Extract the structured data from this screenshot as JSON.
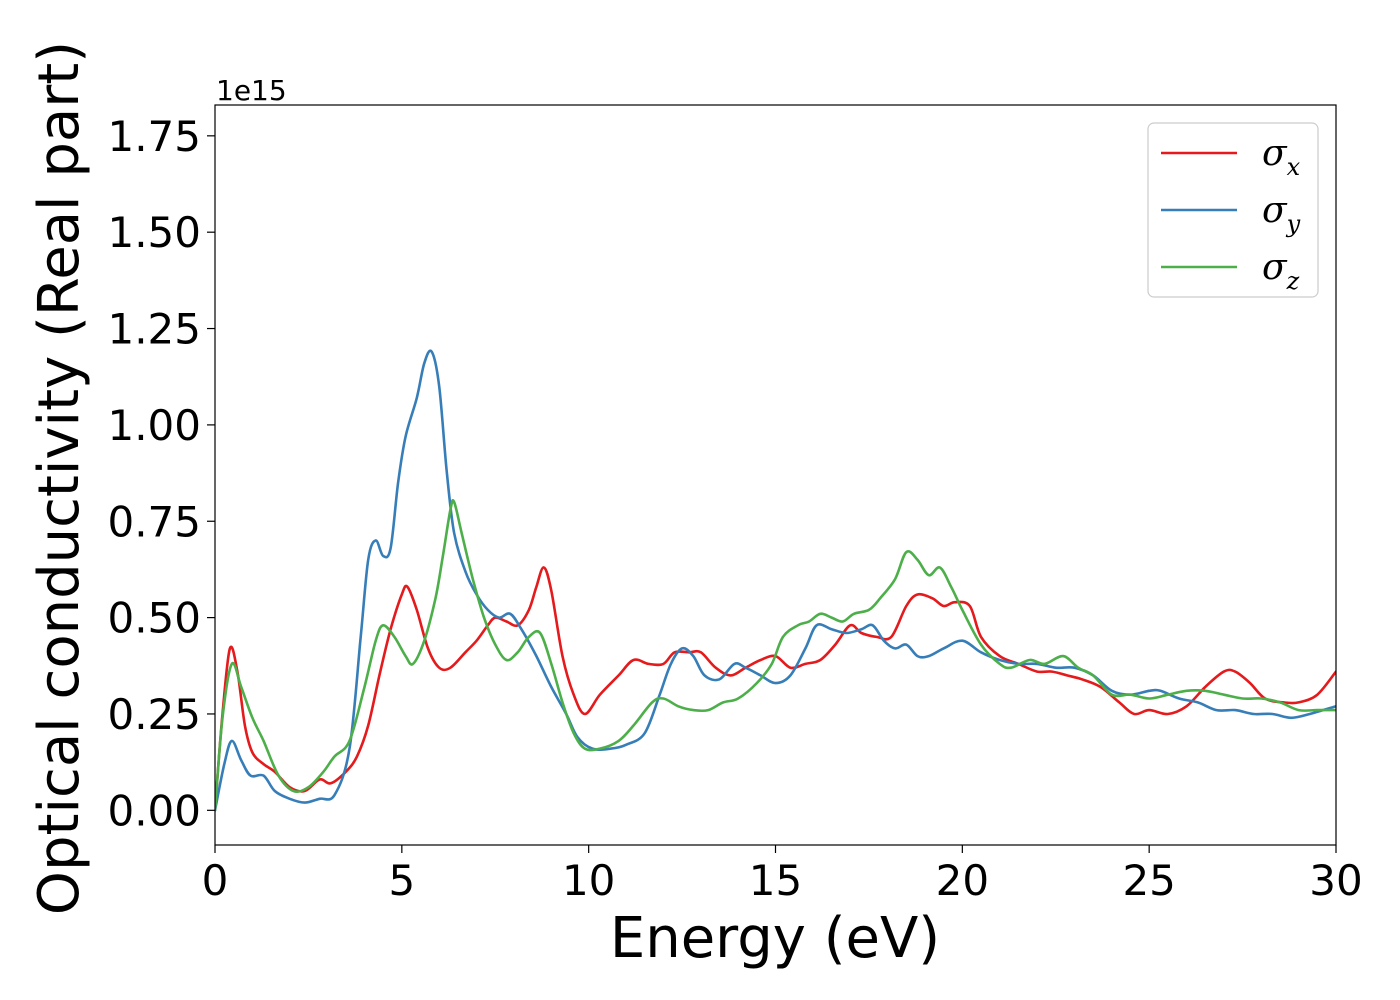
{
  "chart_data": {
    "type": "line",
    "xlabel": "Energy (eV)",
    "ylabel": "Optical conductivity (Real part)",
    "y_offset_label": "1e15",
    "xlim": [
      0,
      30
    ],
    "ylim": [
      -0.09,
      1.83
    ],
    "x_ticks": [
      0,
      5,
      10,
      15,
      20,
      25,
      30
    ],
    "x_tick_labels": [
      "0",
      "5",
      "10",
      "15",
      "20",
      "25",
      "30"
    ],
    "y_ticks": [
      0,
      0.25,
      0.5,
      0.75,
      1.0,
      1.25,
      1.5,
      1.75
    ],
    "y_tick_labels": [
      "0.00",
      "0.25",
      "0.50",
      "0.75",
      "1.00",
      "1.25",
      "1.50",
      "1.75"
    ],
    "grid": false,
    "legend_position": "top-right",
    "series": [
      {
        "name": "σ",
        "subscript": "x",
        "color": "#e41a1c",
        "points": [
          [
            0,
            0
          ],
          [
            0.2,
            0.25
          ],
          [
            0.4,
            0.42
          ],
          [
            0.6,
            0.36
          ],
          [
            0.8,
            0.22
          ],
          [
            1.0,
            0.15
          ],
          [
            1.3,
            0.12
          ],
          [
            1.6,
            0.1
          ],
          [
            2.0,
            0.06
          ],
          [
            2.4,
            0.05
          ],
          [
            2.8,
            0.08
          ],
          [
            3.1,
            0.07
          ],
          [
            3.5,
            0.1
          ],
          [
            3.8,
            0.14
          ],
          [
            4.1,
            0.22
          ],
          [
            4.4,
            0.35
          ],
          [
            4.7,
            0.47
          ],
          [
            5.0,
            0.56
          ],
          [
            5.15,
            0.58
          ],
          [
            5.4,
            0.52
          ],
          [
            5.7,
            0.42
          ],
          [
            6.0,
            0.37
          ],
          [
            6.3,
            0.37
          ],
          [
            6.7,
            0.41
          ],
          [
            7.0,
            0.44
          ],
          [
            7.3,
            0.48
          ],
          [
            7.5,
            0.5
          ],
          [
            7.8,
            0.49
          ],
          [
            8.1,
            0.48
          ],
          [
            8.4,
            0.52
          ],
          [
            8.6,
            0.58
          ],
          [
            8.8,
            0.63
          ],
          [
            9.0,
            0.57
          ],
          [
            9.3,
            0.4
          ],
          [
            9.6,
            0.3
          ],
          [
            9.9,
            0.25
          ],
          [
            10.3,
            0.3
          ],
          [
            10.8,
            0.35
          ],
          [
            11.2,
            0.39
          ],
          [
            11.6,
            0.38
          ],
          [
            12.0,
            0.38
          ],
          [
            12.3,
            0.41
          ],
          [
            12.7,
            0.41
          ],
          [
            13.0,
            0.41
          ],
          [
            13.4,
            0.37
          ],
          [
            13.8,
            0.35
          ],
          [
            14.2,
            0.37
          ],
          [
            14.6,
            0.39
          ],
          [
            15.0,
            0.4
          ],
          [
            15.4,
            0.37
          ],
          [
            15.8,
            0.38
          ],
          [
            16.2,
            0.39
          ],
          [
            16.6,
            0.43
          ],
          [
            17.0,
            0.48
          ],
          [
            17.3,
            0.46
          ],
          [
            17.7,
            0.45
          ],
          [
            18.1,
            0.45
          ],
          [
            18.5,
            0.53
          ],
          [
            18.8,
            0.56
          ],
          [
            19.2,
            0.55
          ],
          [
            19.5,
            0.53
          ],
          [
            19.8,
            0.54
          ],
          [
            20.2,
            0.53
          ],
          [
            20.5,
            0.45
          ],
          [
            21.0,
            0.4
          ],
          [
            21.5,
            0.38
          ],
          [
            22.0,
            0.36
          ],
          [
            22.4,
            0.36
          ],
          [
            22.8,
            0.35
          ],
          [
            23.2,
            0.34
          ],
          [
            23.7,
            0.32
          ],
          [
            24.2,
            0.28
          ],
          [
            24.6,
            0.25
          ],
          [
            25.0,
            0.26
          ],
          [
            25.5,
            0.25
          ],
          [
            26.0,
            0.27
          ],
          [
            26.5,
            0.32
          ],
          [
            27.0,
            0.36
          ],
          [
            27.3,
            0.36
          ],
          [
            27.7,
            0.33
          ],
          [
            28.1,
            0.29
          ],
          [
            28.6,
            0.28
          ],
          [
            29.0,
            0.28
          ],
          [
            29.5,
            0.3
          ],
          [
            30.0,
            0.36
          ]
        ]
      },
      {
        "name": "σ",
        "subscript": "y",
        "color": "#377eb8",
        "points": [
          [
            0,
            0
          ],
          [
            0.25,
            0.12
          ],
          [
            0.45,
            0.18
          ],
          [
            0.7,
            0.13
          ],
          [
            0.95,
            0.09
          ],
          [
            1.3,
            0.09
          ],
          [
            1.6,
            0.05
          ],
          [
            2.0,
            0.03
          ],
          [
            2.4,
            0.02
          ],
          [
            2.8,
            0.03
          ],
          [
            3.2,
            0.04
          ],
          [
            3.6,
            0.16
          ],
          [
            3.9,
            0.45
          ],
          [
            4.1,
            0.65
          ],
          [
            4.3,
            0.7
          ],
          [
            4.5,
            0.66
          ],
          [
            4.7,
            0.68
          ],
          [
            4.9,
            0.85
          ],
          [
            5.1,
            0.97
          ],
          [
            5.4,
            1.07
          ],
          [
            5.6,
            1.16
          ],
          [
            5.8,
            1.19
          ],
          [
            6.0,
            1.1
          ],
          [
            6.2,
            0.88
          ],
          [
            6.4,
            0.72
          ],
          [
            6.7,
            0.62
          ],
          [
            7.0,
            0.56
          ],
          [
            7.3,
            0.52
          ],
          [
            7.6,
            0.5
          ],
          [
            7.9,
            0.51
          ],
          [
            8.2,
            0.47
          ],
          [
            8.6,
            0.4
          ],
          [
            9.0,
            0.32
          ],
          [
            9.4,
            0.25
          ],
          [
            9.7,
            0.19
          ],
          [
            10.1,
            0.16
          ],
          [
            10.6,
            0.16
          ],
          [
            11.0,
            0.17
          ],
          [
            11.5,
            0.2
          ],
          [
            11.9,
            0.3
          ],
          [
            12.2,
            0.38
          ],
          [
            12.5,
            0.42
          ],
          [
            12.8,
            0.4
          ],
          [
            13.1,
            0.35
          ],
          [
            13.5,
            0.34
          ],
          [
            13.9,
            0.38
          ],
          [
            14.2,
            0.37
          ],
          [
            14.6,
            0.35
          ],
          [
            15.0,
            0.33
          ],
          [
            15.4,
            0.35
          ],
          [
            15.8,
            0.42
          ],
          [
            16.1,
            0.48
          ],
          [
            16.5,
            0.47
          ],
          [
            16.9,
            0.46
          ],
          [
            17.3,
            0.47
          ],
          [
            17.6,
            0.48
          ],
          [
            17.9,
            0.44
          ],
          [
            18.2,
            0.42
          ],
          [
            18.5,
            0.43
          ],
          [
            18.8,
            0.4
          ],
          [
            19.1,
            0.4
          ],
          [
            19.5,
            0.42
          ],
          [
            20.0,
            0.44
          ],
          [
            20.5,
            0.41
          ],
          [
            21.0,
            0.39
          ],
          [
            21.5,
            0.38
          ],
          [
            22.0,
            0.38
          ],
          [
            22.5,
            0.37
          ],
          [
            23.0,
            0.37
          ],
          [
            23.5,
            0.35
          ],
          [
            24.0,
            0.31
          ],
          [
            24.5,
            0.3
          ],
          [
            25.0,
            0.31
          ],
          [
            25.3,
            0.31
          ],
          [
            25.8,
            0.29
          ],
          [
            26.3,
            0.28
          ],
          [
            26.8,
            0.26
          ],
          [
            27.3,
            0.26
          ],
          [
            27.8,
            0.25
          ],
          [
            28.3,
            0.25
          ],
          [
            28.8,
            0.24
          ],
          [
            29.3,
            0.25
          ],
          [
            30.0,
            0.27
          ]
        ]
      },
      {
        "name": "σ",
        "subscript": "z",
        "color": "#4daf4a",
        "points": [
          [
            0,
            0
          ],
          [
            0.2,
            0.24
          ],
          [
            0.45,
            0.38
          ],
          [
            0.7,
            0.32
          ],
          [
            1.0,
            0.24
          ],
          [
            1.3,
            0.18
          ],
          [
            1.7,
            0.09
          ],
          [
            2.1,
            0.05
          ],
          [
            2.5,
            0.06
          ],
          [
            2.9,
            0.1
          ],
          [
            3.2,
            0.14
          ],
          [
            3.6,
            0.18
          ],
          [
            4.0,
            0.32
          ],
          [
            4.3,
            0.44
          ],
          [
            4.5,
            0.48
          ],
          [
            4.8,
            0.45
          ],
          [
            5.1,
            0.4
          ],
          [
            5.3,
            0.38
          ],
          [
            5.6,
            0.44
          ],
          [
            5.9,
            0.55
          ],
          [
            6.1,
            0.66
          ],
          [
            6.3,
            0.78
          ],
          [
            6.4,
            0.8
          ],
          [
            6.6,
            0.72
          ],
          [
            6.9,
            0.6
          ],
          [
            7.2,
            0.5
          ],
          [
            7.5,
            0.43
          ],
          [
            7.8,
            0.39
          ],
          [
            8.1,
            0.41
          ],
          [
            8.4,
            0.45
          ],
          [
            8.7,
            0.46
          ],
          [
            9.0,
            0.38
          ],
          [
            9.3,
            0.28
          ],
          [
            9.6,
            0.2
          ],
          [
            9.9,
            0.16
          ],
          [
            10.3,
            0.16
          ],
          [
            10.8,
            0.18
          ],
          [
            11.2,
            0.22
          ],
          [
            11.7,
            0.28
          ],
          [
            12.0,
            0.29
          ],
          [
            12.4,
            0.27
          ],
          [
            12.8,
            0.26
          ],
          [
            13.2,
            0.26
          ],
          [
            13.6,
            0.28
          ],
          [
            14.0,
            0.29
          ],
          [
            14.5,
            0.33
          ],
          [
            14.9,
            0.38
          ],
          [
            15.2,
            0.45
          ],
          [
            15.6,
            0.48
          ],
          [
            15.9,
            0.49
          ],
          [
            16.2,
            0.51
          ],
          [
            16.5,
            0.5
          ],
          [
            16.8,
            0.49
          ],
          [
            17.1,
            0.51
          ],
          [
            17.5,
            0.52
          ],
          [
            17.8,
            0.55
          ],
          [
            18.2,
            0.6
          ],
          [
            18.5,
            0.67
          ],
          [
            18.8,
            0.65
          ],
          [
            19.1,
            0.61
          ],
          [
            19.4,
            0.63
          ],
          [
            19.7,
            0.58
          ],
          [
            20.0,
            0.52
          ],
          [
            20.5,
            0.43
          ],
          [
            21.0,
            0.38
          ],
          [
            21.3,
            0.37
          ],
          [
            21.8,
            0.39
          ],
          [
            22.2,
            0.38
          ],
          [
            22.7,
            0.4
          ],
          [
            23.1,
            0.37
          ],
          [
            23.5,
            0.35
          ],
          [
            24.0,
            0.3
          ],
          [
            24.5,
            0.3
          ],
          [
            25.0,
            0.29
          ],
          [
            25.5,
            0.3
          ],
          [
            26.0,
            0.31
          ],
          [
            26.5,
            0.31
          ],
          [
            27.0,
            0.3
          ],
          [
            27.5,
            0.29
          ],
          [
            28.0,
            0.29
          ],
          [
            28.5,
            0.28
          ],
          [
            29.0,
            0.26
          ],
          [
            29.5,
            0.26
          ],
          [
            30.0,
            0.26
          ]
        ]
      }
    ]
  }
}
